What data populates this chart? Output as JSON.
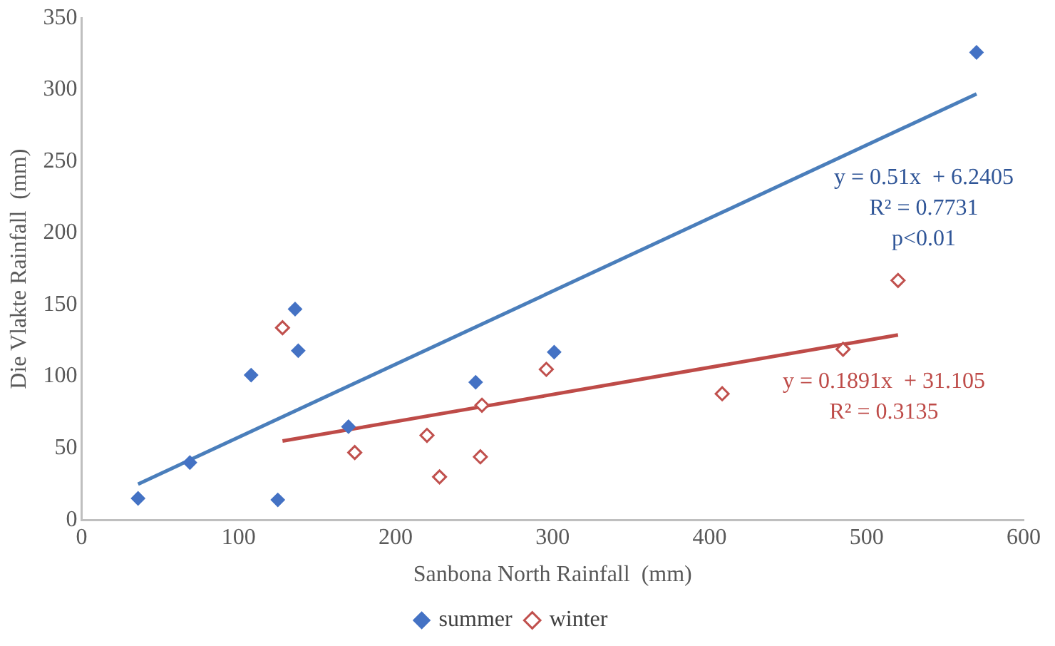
{
  "chart_data": {
    "type": "scatter",
    "xlabel": "Sanbona North Rainfall  (mm)",
    "ylabel": "Die Vlakte Rainfall  (mm)",
    "xlim": [
      0,
      600
    ],
    "xticks": [
      0,
      100,
      200,
      300,
      400,
      500,
      600
    ],
    "ylim": [
      0,
      350
    ],
    "yticks": [
      0,
      50,
      100,
      150,
      200,
      250,
      300,
      350
    ],
    "grid": false,
    "legend": "bottom",
    "marker": "diamond",
    "series": [
      {
        "name": "summer",
        "color": "#4472c4",
        "x": [
          36,
          69,
          108,
          136,
          138,
          125,
          170,
          251,
          301,
          570
        ],
        "values": [
          15,
          40,
          101,
          147,
          118,
          14,
          65,
          96,
          117,
          326
        ]
      },
      {
        "name": "winter",
        "color": "#c0504d",
        "x": [
          128,
          174,
          220,
          228,
          254,
          255,
          296,
          408,
          485,
          520
        ],
        "values": [
          134,
          47,
          59,
          30,
          44,
          80,
          105,
          88,
          119,
          167
        ]
      },
      {
        "type": "line",
        "color": "#4a7ebb",
        "marker": "none",
        "x": [
          36,
          570
        ],
        "values": [
          25,
          297
        ]
      },
      {
        "type": "line",
        "color": "#be4b48",
        "marker": "none",
        "x": [
          128,
          520
        ],
        "values": [
          55,
          129
        ]
      }
    ],
    "annotations": [
      "y = 0.51x  + 6.2405",
      "R² = 0.7731",
      "p<0.01",
      "y = 0.1891x  + 31.105",
      "R² = 0.3135"
    ]
  }
}
